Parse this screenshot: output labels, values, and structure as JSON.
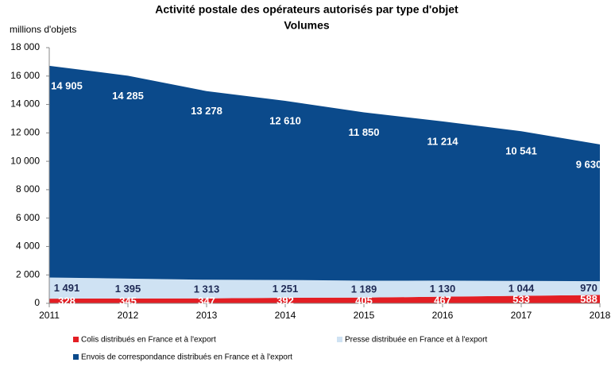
{
  "chart_data": {
    "type": "stacked-area",
    "title": "Activité postale des opérateurs autorisés par type d'objet",
    "subtitle": "Volumes",
    "y_label": "millions d'objets",
    "x": [
      2011,
      2012,
      2013,
      2014,
      2015,
      2016,
      2017,
      2018
    ],
    "xlim": [
      2011,
      2018
    ],
    "xticks": [
      2011,
      2012,
      2013,
      2014,
      2015,
      2016,
      2017,
      2018
    ],
    "ylim": [
      0,
      18000
    ],
    "yticks": [
      0,
      {
        "value": 2000,
        "label": "2 000"
      },
      {
        "value": 4000,
        "label": "4 000"
      },
      {
        "value": 6000,
        "label": "6 000"
      },
      {
        "value": 8000,
        "label": "8 000"
      },
      {
        "value": 10000,
        "label": "10 000"
      },
      {
        "value": 12000,
        "label": "12 000"
      },
      {
        "value": 14000,
        "label": "14 000"
      },
      {
        "value": 16000,
        "label": "16 000"
      },
      {
        "value": 18000,
        "label": "18 000"
      }
    ],
    "series": [
      {
        "name": "Colis distribués en France et à l'export",
        "color": "#e31e24",
        "label_color": "#ffffff",
        "values": [
          328,
          345,
          347,
          392,
          405,
          467,
          533,
          588
        ]
      },
      {
        "name": "Presse distribuée en France et à l'export",
        "color": "#cfe2f3",
        "label_color": "#1f2a55",
        "values": [
          1491,
          1395,
          1313,
          1251,
          1189,
          1130,
          1044,
          970
        ],
        "value_labels": [
          "1 491",
          "1 395",
          "1 313",
          "1 251",
          "1 189",
          "1 130",
          "1 044",
          "970"
        ]
      },
      {
        "name": "Envois de correspondance distribués en France et à l'export",
        "color": "#0b4a8b",
        "label_color": "#ffffff",
        "values": [
          14905,
          14285,
          13278,
          12610,
          11850,
          11214,
          10541,
          9630
        ],
        "value_labels": [
          "14 905",
          "14 285",
          "13 278",
          "12 610",
          "11 850",
          "11 214",
          "10 541",
          "9 630"
        ]
      }
    ]
  }
}
